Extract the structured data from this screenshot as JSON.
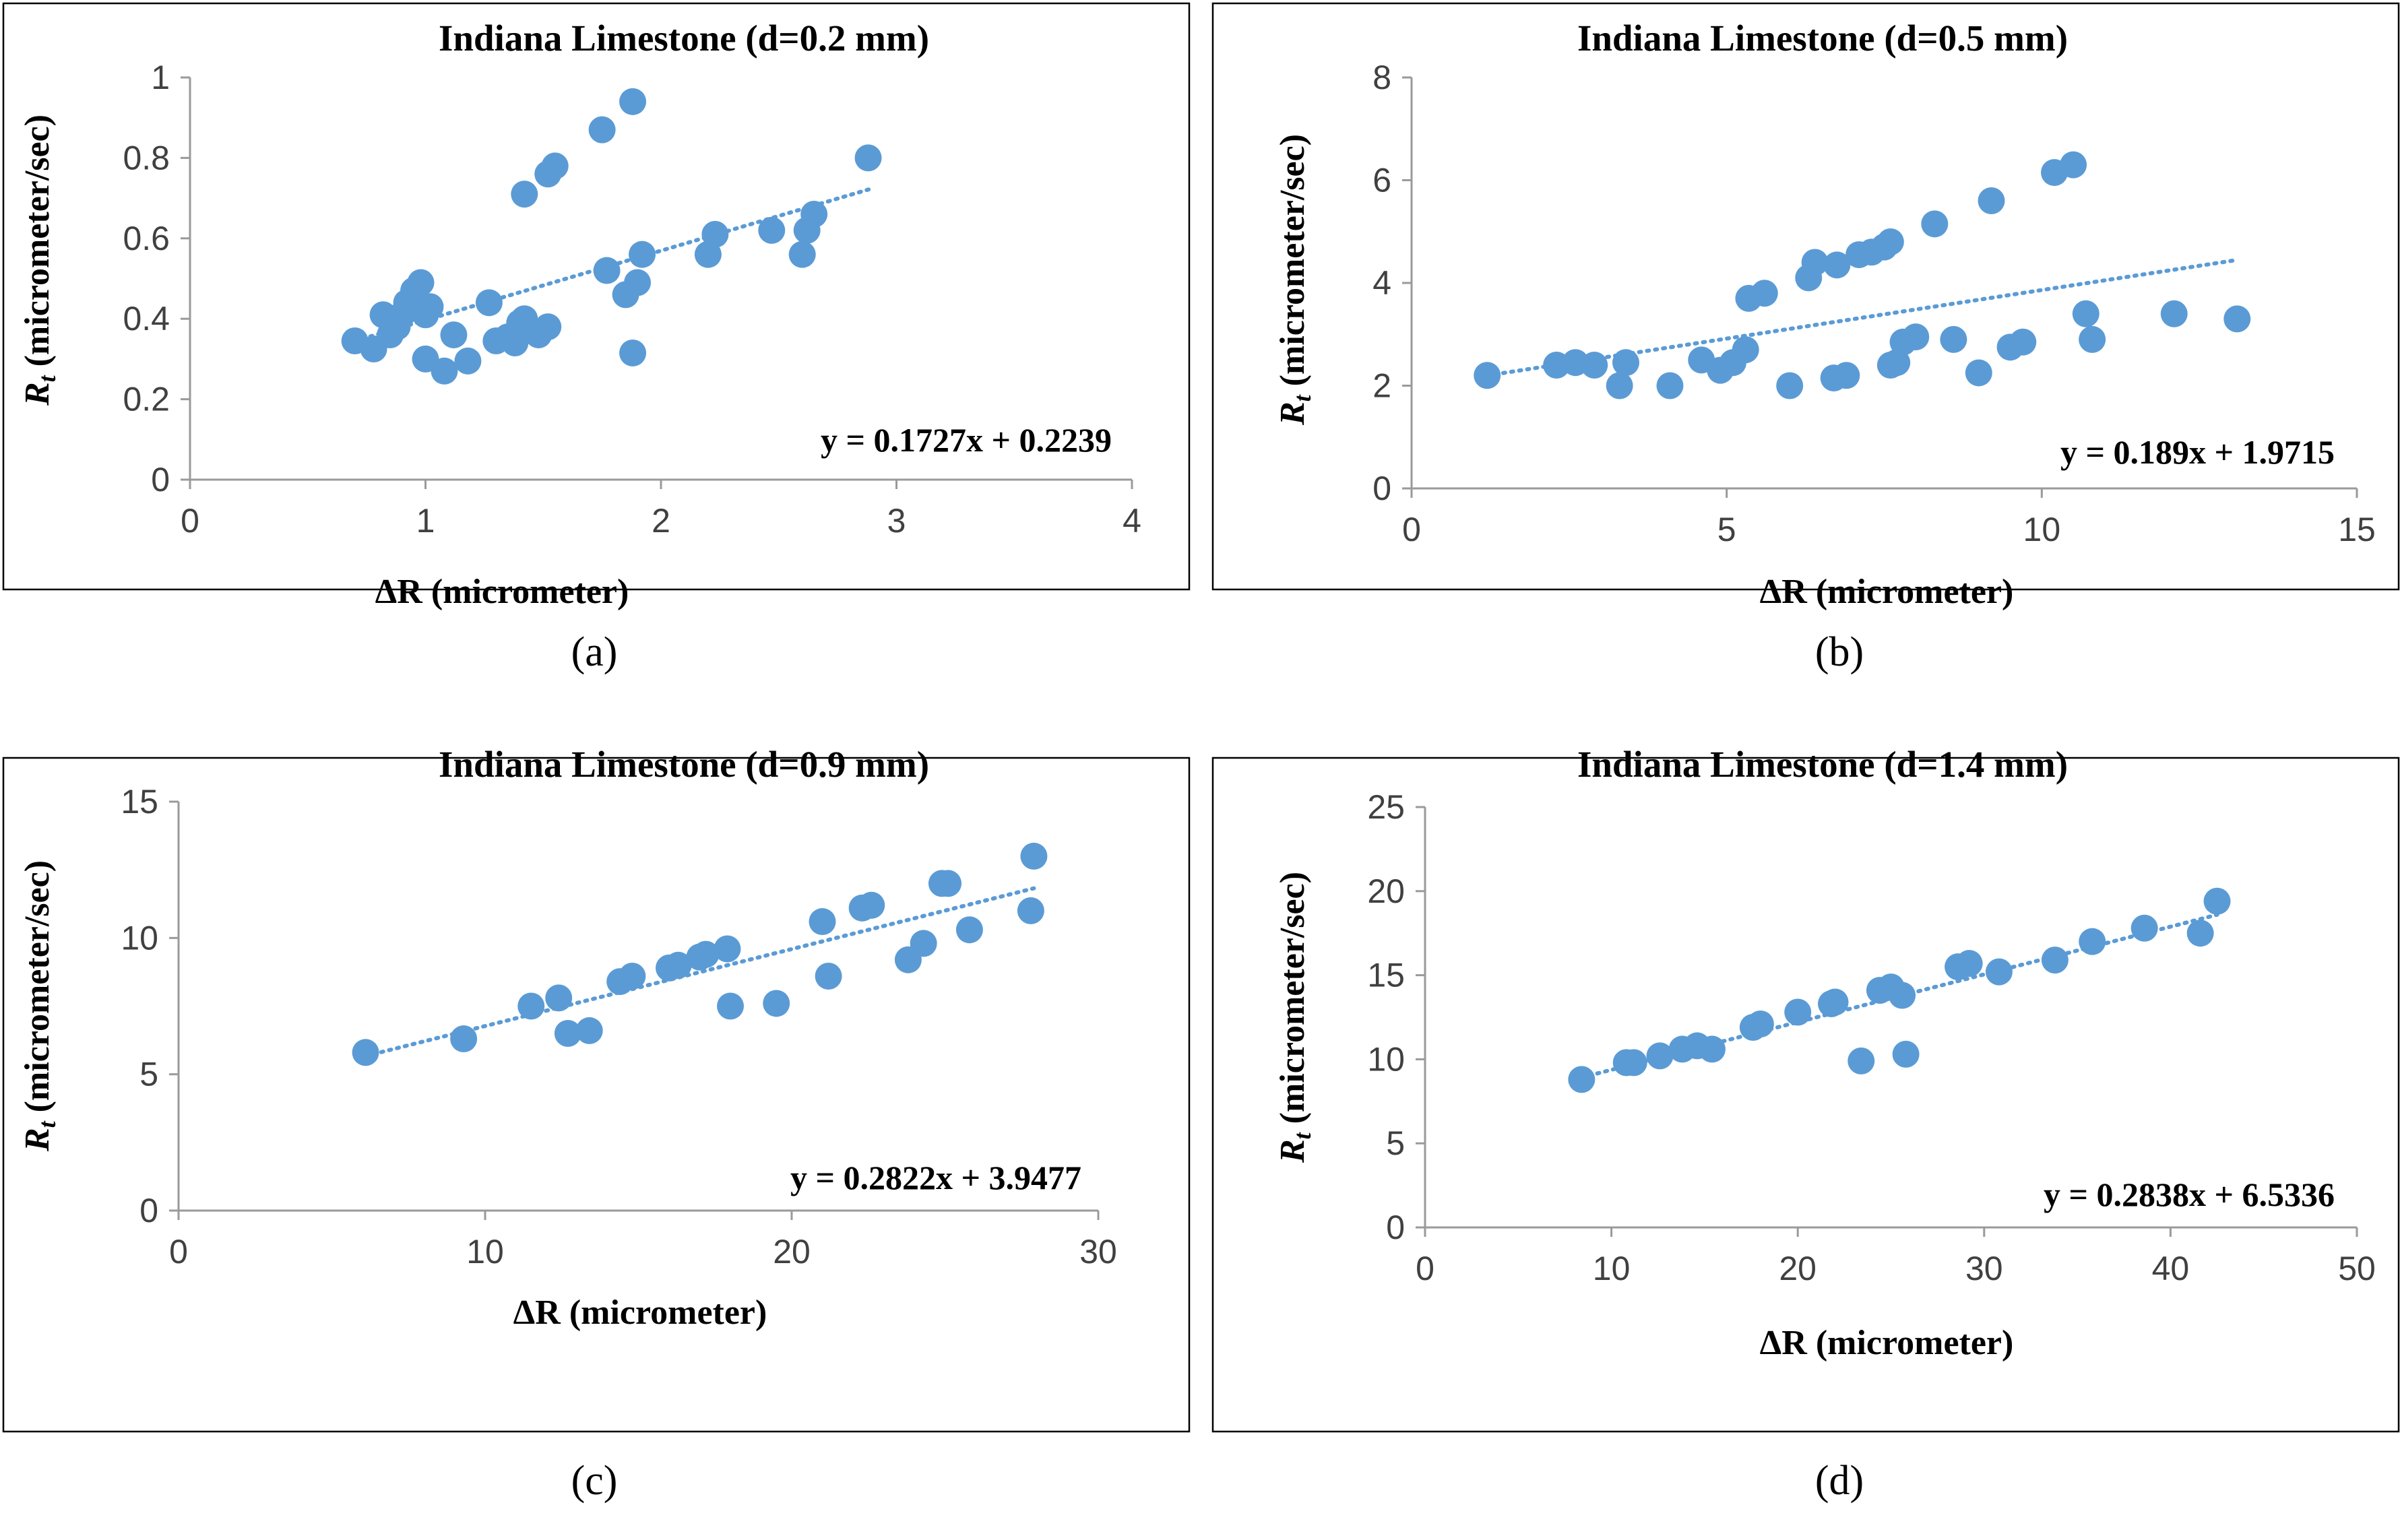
{
  "colors": {
    "marker": "#5b9bd5",
    "trendline": "#5b9bd5",
    "axis": "#9a9a9a",
    "frame": "#000000"
  },
  "chart_data": [
    {
      "type": "scatter",
      "panel_label": "(a)",
      "title": "Indiana Limestone (d=0.2 mm)",
      "xlabel": "ΔR (micrometer)",
      "ylabel_main": "R",
      "ylabel_sub": "t",
      "ylabel_rest": " (micrometer/sec)",
      "xlim": [
        0,
        4
      ],
      "ylim": [
        0,
        1
      ],
      "xticks": [
        0,
        1,
        2,
        3,
        4
      ],
      "yticks": [
        0,
        0.2,
        0.4,
        0.6,
        0.8,
        1
      ],
      "ytick_labels": [
        "0",
        "0.2",
        "0.4",
        "0.6",
        "0.8",
        "1"
      ],
      "trendline": {
        "slope": 0.1727,
        "intercept": 0.2239,
        "x_range": [
          0.7,
          2.9
        ]
      },
      "equation": "y = 0.1727x + 0.2239",
      "points": [
        [
          0.7,
          0.345
        ],
        [
          0.78,
          0.325
        ],
        [
          0.82,
          0.41
        ],
        [
          0.85,
          0.36
        ],
        [
          0.88,
          0.38
        ],
        [
          0.9,
          0.41
        ],
        [
          0.92,
          0.44
        ],
        [
          0.95,
          0.47
        ],
        [
          0.98,
          0.49
        ],
        [
          1.0,
          0.41
        ],
        [
          1.02,
          0.43
        ],
        [
          1.0,
          0.3
        ],
        [
          1.08,
          0.27
        ],
        [
          1.12,
          0.36
        ],
        [
          1.18,
          0.295
        ],
        [
          1.27,
          0.44
        ],
        [
          1.3,
          0.345
        ],
        [
          1.35,
          0.355
        ],
        [
          1.38,
          0.34
        ],
        [
          1.4,
          0.39
        ],
        [
          1.42,
          0.4
        ],
        [
          1.45,
          0.37
        ],
        [
          1.48,
          0.36
        ],
        [
          1.52,
          0.38
        ],
        [
          1.42,
          0.71
        ],
        [
          1.52,
          0.76
        ],
        [
          1.55,
          0.78
        ],
        [
          1.75,
          0.87
        ],
        [
          1.88,
          0.94
        ],
        [
          1.77,
          0.52
        ],
        [
          1.85,
          0.46
        ],
        [
          1.9,
          0.49
        ],
        [
          1.92,
          0.56
        ],
        [
          1.88,
          0.315
        ],
        [
          2.2,
          0.56
        ],
        [
          2.23,
          0.61
        ],
        [
          2.47,
          0.62
        ],
        [
          2.6,
          0.56
        ],
        [
          2.62,
          0.62
        ],
        [
          2.65,
          0.66
        ],
        [
          2.88,
          0.8
        ]
      ]
    },
    {
      "type": "scatter",
      "panel_label": "(b)",
      "title": "Indiana Limestone (d=0.5 mm)",
      "xlabel": "ΔR (micrometer)",
      "ylabel_main": "R",
      "ylabel_sub": "t",
      "ylabel_rest": " (micrometer/sec)",
      "xlim": [
        0,
        15
      ],
      "ylim": [
        0,
        8
      ],
      "xticks": [
        0,
        5,
        10,
        15
      ],
      "yticks": [
        0,
        2,
        4,
        6,
        8
      ],
      "ytick_labels": [
        "0",
        "2",
        "4",
        "6",
        "8"
      ],
      "trendline": {
        "slope": 0.189,
        "intercept": 1.9715,
        "x_range": [
          1.2,
          13.1
        ]
      },
      "equation": "y = 0.189x + 1.9715",
      "points": [
        [
          1.2,
          2.2
        ],
        [
          2.3,
          2.4
        ],
        [
          2.6,
          2.45
        ],
        [
          2.9,
          2.4
        ],
        [
          3.3,
          2.0
        ],
        [
          3.4,
          2.45
        ],
        [
          4.1,
          2.0
        ],
        [
          4.6,
          2.5
        ],
        [
          4.9,
          2.3
        ],
        [
          5.1,
          2.45
        ],
        [
          5.3,
          2.7
        ],
        [
          5.35,
          3.7
        ],
        [
          5.6,
          3.8
        ],
        [
          6.0,
          2.0
        ],
        [
          6.3,
          4.1
        ],
        [
          6.4,
          4.4
        ],
        [
          6.7,
          2.15
        ],
        [
          6.75,
          4.35
        ],
        [
          6.9,
          2.2
        ],
        [
          7.1,
          4.55
        ],
        [
          7.3,
          4.6
        ],
        [
          7.5,
          4.7
        ],
        [
          7.6,
          4.8
        ],
        [
          7.6,
          2.4
        ],
        [
          7.7,
          2.45
        ],
        [
          7.8,
          2.85
        ],
        [
          8.0,
          2.95
        ],
        [
          8.3,
          5.15
        ],
        [
          8.6,
          2.9
        ],
        [
          9.0,
          2.25
        ],
        [
          9.2,
          5.6
        ],
        [
          9.5,
          2.75
        ],
        [
          9.7,
          2.85
        ],
        [
          10.2,
          6.15
        ],
        [
          10.5,
          6.3
        ],
        [
          10.7,
          3.4
        ],
        [
          10.8,
          2.9
        ],
        [
          12.1,
          3.4
        ],
        [
          13.1,
          3.3
        ]
      ]
    },
    {
      "type": "scatter",
      "panel_label": "(c)",
      "title": "Indiana Limestone (d=0.9 mm)",
      "xlabel": "ΔR (micrometer)",
      "ylabel_main": "R",
      "ylabel_sub": "t",
      "ylabel_rest": " (micrometer/sec)",
      "xlim": [
        0,
        30
      ],
      "ylim": [
        0,
        15
      ],
      "xticks": [
        0,
        10,
        20,
        30
      ],
      "yticks": [
        0,
        5,
        10,
        15
      ],
      "ytick_labels": [
        "0",
        "5",
        "10",
        "15"
      ],
      "trendline": {
        "slope": 0.2822,
        "intercept": 3.9477,
        "x_range": [
          6.1,
          27.9
        ]
      },
      "equation": "y = 0.2822x + 3.9477",
      "points": [
        [
          6.1,
          5.8
        ],
        [
          9.3,
          6.3
        ],
        [
          11.5,
          7.5
        ],
        [
          12.4,
          7.8
        ],
        [
          12.7,
          6.5
        ],
        [
          13.4,
          6.6
        ],
        [
          14.4,
          8.4
        ],
        [
          14.8,
          8.6
        ],
        [
          16.0,
          8.9
        ],
        [
          16.3,
          9.0
        ],
        [
          17.0,
          9.3
        ],
        [
          17.2,
          9.4
        ],
        [
          17.9,
          9.6
        ],
        [
          18.0,
          7.5
        ],
        [
          19.5,
          7.6
        ],
        [
          21.0,
          10.6
        ],
        [
          21.2,
          8.6
        ],
        [
          22.3,
          11.1
        ],
        [
          22.6,
          11.2
        ],
        [
          23.8,
          9.2
        ],
        [
          24.3,
          9.8
        ],
        [
          24.9,
          12.0
        ],
        [
          25.1,
          12.0
        ],
        [
          25.8,
          10.3
        ],
        [
          27.8,
          11.0
        ],
        [
          27.9,
          13.0
        ]
      ]
    },
    {
      "type": "scatter",
      "panel_label": "(d)",
      "title": "Indiana Limestone (d=1.4 mm)",
      "xlabel": "ΔR (micrometer)",
      "ylabel_main": "R",
      "ylabel_sub": "t",
      "ylabel_rest": " (micrometer/sec)",
      "xlim": [
        0,
        50
      ],
      "ylim": [
        0,
        25
      ],
      "xticks": [
        0,
        10,
        20,
        30,
        40,
        50
      ],
      "yticks": [
        0,
        5,
        10,
        15,
        20,
        25
      ],
      "ytick_labels": [
        "0",
        "5",
        "10",
        "15",
        "20",
        "25"
      ],
      "trendline": {
        "slope": 0.2838,
        "intercept": 6.5336,
        "x_range": [
          8.4,
          42.5
        ]
      },
      "equation": "y = 0.2838x + 6.5336",
      "points": [
        [
          8.4,
          8.8
        ],
        [
          10.8,
          9.8
        ],
        [
          11.2,
          9.8
        ],
        [
          12.6,
          10.2
        ],
        [
          13.8,
          10.6
        ],
        [
          14.6,
          10.8
        ],
        [
          15.4,
          10.6
        ],
        [
          17.6,
          11.9
        ],
        [
          18.0,
          12.1
        ],
        [
          20.0,
          12.8
        ],
        [
          21.8,
          13.3
        ],
        [
          22.0,
          13.4
        ],
        [
          23.4,
          9.9
        ],
        [
          24.4,
          14.1
        ],
        [
          25.0,
          14.3
        ],
        [
          25.6,
          13.8
        ],
        [
          25.8,
          10.3
        ],
        [
          28.6,
          15.5
        ],
        [
          29.2,
          15.7
        ],
        [
          30.8,
          15.2
        ],
        [
          33.8,
          15.9
        ],
        [
          35.8,
          17.0
        ],
        [
          38.6,
          17.8
        ],
        [
          41.6,
          17.5
        ],
        [
          42.5,
          19.4
        ]
      ]
    }
  ]
}
